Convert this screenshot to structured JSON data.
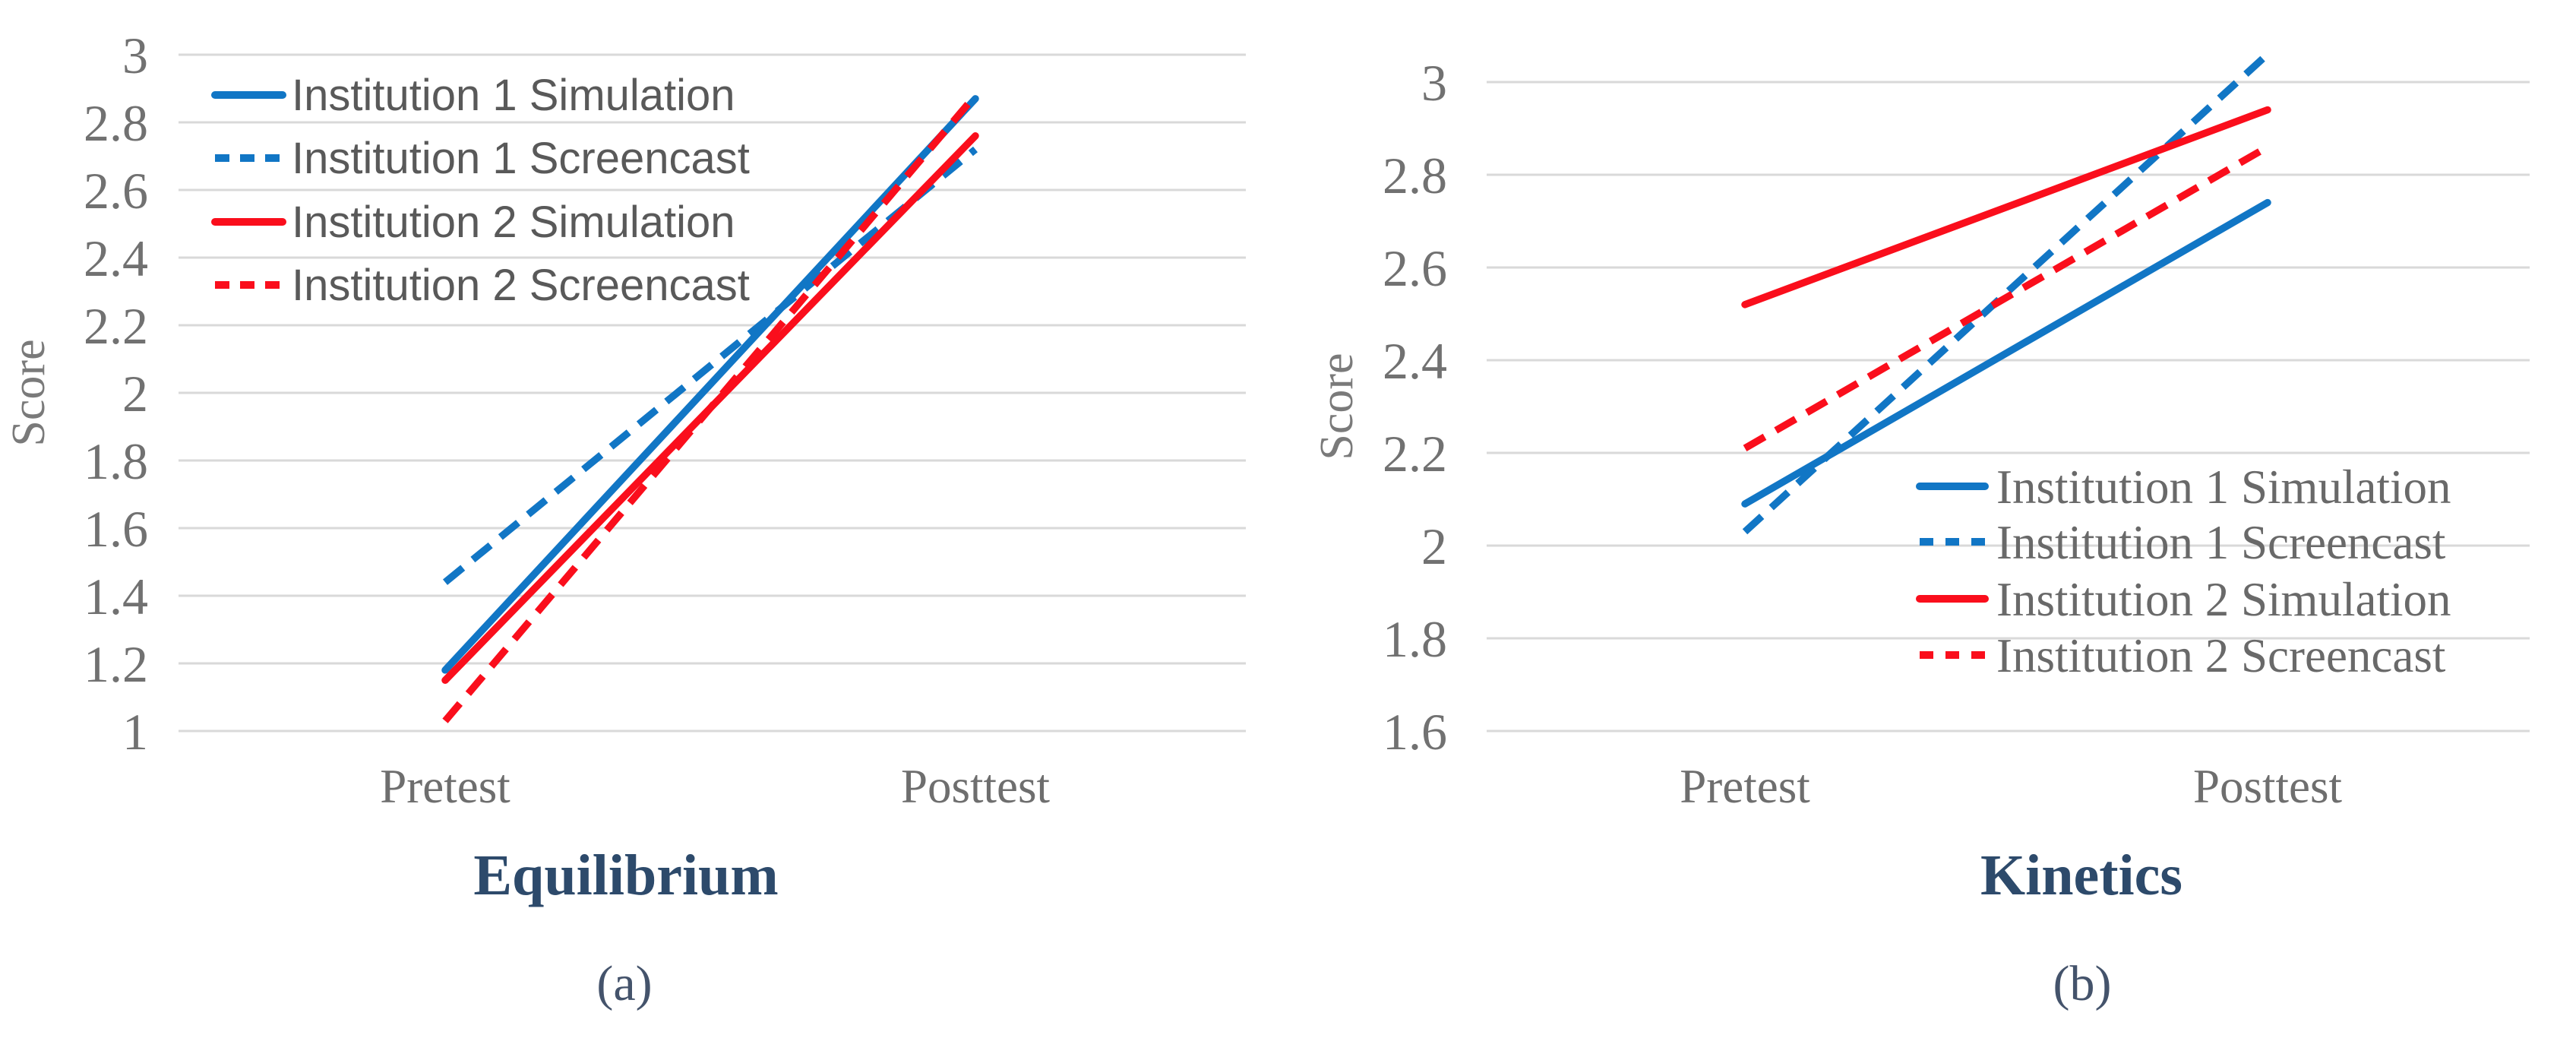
{
  "figure": {
    "background": "#ffffff",
    "panels": [
      {
        "id": "a",
        "title": "Equilibrium",
        "caption": "(a)"
      },
      {
        "id": "b",
        "title": "Kinetics",
        "caption": "(b)"
      }
    ]
  },
  "theme": {
    "gridline_color": "#d9d9d9",
    "tick_label_color": "#717171",
    "axis_title_color": "#7a7a7a",
    "legend_text_color_sans": "#595959",
    "legend_text_color_serif": "#696969",
    "panel_title_color": "#2d4a6b",
    "caption_color": "#44536b",
    "institution1_color": "#1176c5",
    "institution2_color": "#fa0e1c"
  },
  "chart_data": [
    {
      "type": "line",
      "panel": "a",
      "title": "Equilibrium",
      "caption": "(a)",
      "xlabel": "",
      "ylabel": "Score",
      "categories": [
        "Pretest",
        "Posttest"
      ],
      "y_ticks": [
        1,
        1.2,
        1.4,
        1.6,
        1.8,
        2,
        2.2,
        2.4,
        2.6,
        2.8,
        3
      ],
      "ylim": [
        1,
        3.05
      ],
      "grid": true,
      "legend_position": "top-left",
      "series": [
        {
          "name": "Institution 1 Simulation",
          "color": "#1176c5",
          "style": "solid",
          "values": [
            1.18,
            2.87
          ]
        },
        {
          "name": "Institution 1 Screencast",
          "color": "#1176c5",
          "style": "dashed",
          "values": [
            1.44,
            2.72
          ]
        },
        {
          "name": "Institution 2 Simulation",
          "color": "#fa0e1c",
          "style": "solid",
          "values": [
            1.15,
            2.76
          ]
        },
        {
          "name": "Institution 2 Screencast",
          "color": "#fa0e1c",
          "style": "dashed",
          "values": [
            1.03,
            2.88
          ]
        }
      ]
    },
    {
      "type": "line",
      "panel": "b",
      "title": "Kinetics",
      "caption": "(b)",
      "xlabel": "",
      "ylabel": "Score",
      "categories": [
        "Pretest",
        "Posttest"
      ],
      "y_ticks": [
        1.6,
        1.8,
        2,
        2.2,
        2.4,
        2.6,
        2.8,
        3
      ],
      "ylim": [
        1.6,
        3.1
      ],
      "grid": true,
      "legend_position": "center-right",
      "series": [
        {
          "name": "Institution 1 Simulation",
          "color": "#1176c5",
          "style": "solid",
          "values": [
            2.09,
            2.74
          ]
        },
        {
          "name": "Institution 1 Screencast",
          "color": "#1176c5",
          "style": "dashed",
          "values": [
            2.03,
            3.06
          ]
        },
        {
          "name": "Institution 2 Simulation",
          "color": "#fa0e1c",
          "style": "solid",
          "values": [
            2.52,
            2.94
          ]
        },
        {
          "name": "Institution 2 Screencast",
          "color": "#fa0e1c",
          "style": "dashed",
          "values": [
            2.21,
            2.86
          ]
        }
      ]
    }
  ]
}
